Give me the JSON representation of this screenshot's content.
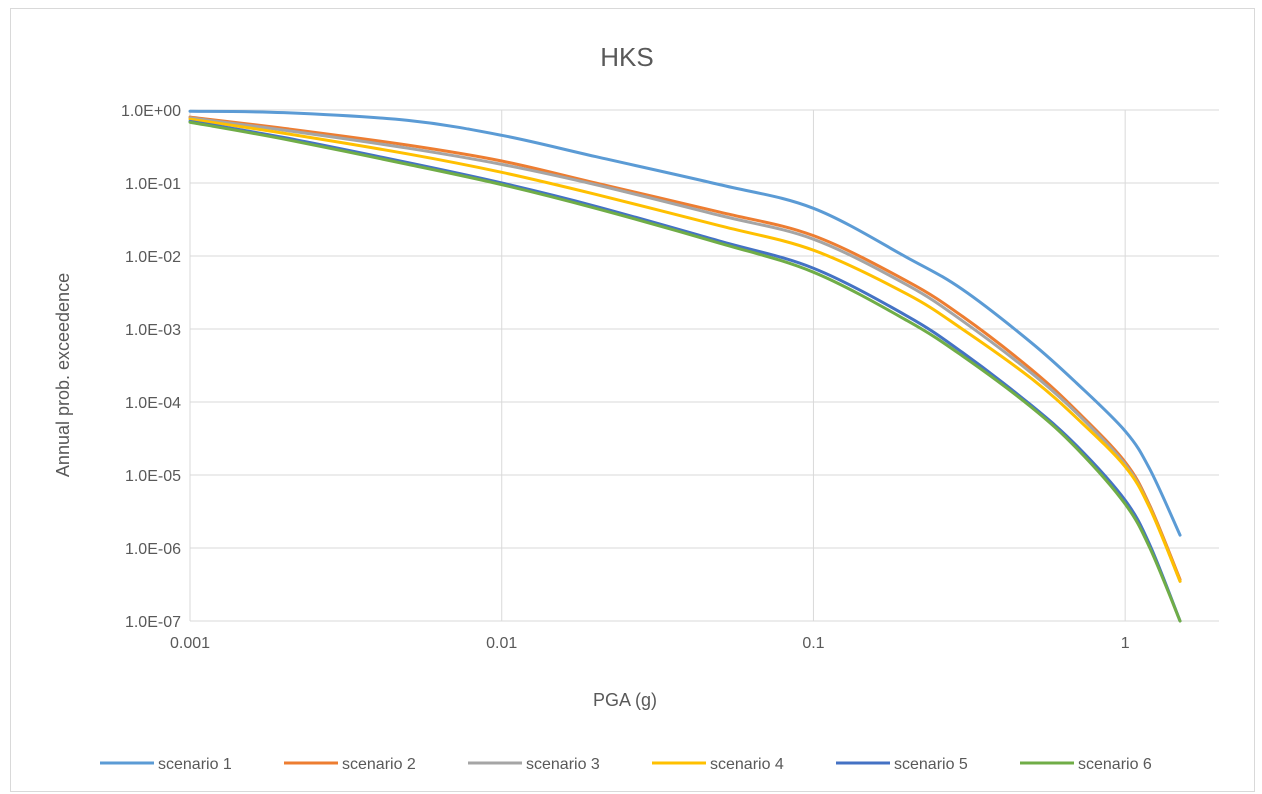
{
  "chart_data": {
    "type": "line",
    "title": "HKS",
    "xlabel": "PGA (g)",
    "ylabel": "Annual prob. exceedence",
    "x_scale": "log",
    "y_scale": "log",
    "xlim": [
      0.001,
      2.0
    ],
    "ylim": [
      1e-07,
      1
    ],
    "x_ticks": [
      0.001,
      0.01,
      0.1,
      1
    ],
    "x_tick_labels": [
      "0.001",
      "0.01",
      "0.1",
      "1"
    ],
    "y_ticks": [
      1,
      0.1,
      0.01,
      0.001,
      0.0001,
      1e-05,
      1e-06,
      1e-07
    ],
    "y_tick_labels": [
      "1.0E+00",
      "1.0E-01",
      "1.0E-02",
      "1.0E-03",
      "1.0E-04",
      "1.0E-05",
      "1.0E-06",
      "1.0E-07"
    ],
    "grid": true,
    "legend_position": "bottom",
    "x": [
      0.001,
      0.002,
      0.005,
      0.01,
      0.02,
      0.05,
      0.1,
      0.2,
      0.3,
      0.5,
      0.7,
      1.0,
      1.2,
      1.5
    ],
    "series": [
      {
        "name": "scenario 1",
        "color": "#5b9bd5",
        "values": [
          0.96,
          0.92,
          0.72,
          0.45,
          0.23,
          0.095,
          0.045,
          0.0095,
          0.0035,
          0.00065,
          0.00018,
          4e-05,
          1.2e-05,
          1.5e-06
        ]
      },
      {
        "name": "scenario 2",
        "color": "#ed7d31",
        "values": [
          0.8,
          0.56,
          0.33,
          0.2,
          0.1,
          0.04,
          0.019,
          0.0045,
          0.0015,
          0.00028,
          7.5e-05,
          1.5e-05,
          3.8e-06,
          3.7e-07
        ]
      },
      {
        "name": "scenario 3",
        "color": "#a5a5a5",
        "values": [
          0.78,
          0.53,
          0.3,
          0.18,
          0.095,
          0.036,
          0.017,
          0.004,
          0.0013,
          0.00025,
          7e-05,
          1.4e-05,
          3.6e-06,
          3.5e-07
        ]
      },
      {
        "name": "scenario 4",
        "color": "#ffc000",
        "values": [
          0.75,
          0.48,
          0.25,
          0.14,
          0.07,
          0.026,
          0.012,
          0.003,
          0.001,
          0.00021,
          6e-05,
          1.3e-05,
          3.5e-06,
          3.5e-07
        ]
      },
      {
        "name": "scenario 5",
        "color": "#4472c4",
        "values": [
          0.7,
          0.42,
          0.19,
          0.1,
          0.048,
          0.016,
          0.0068,
          0.0015,
          0.00048,
          9e-05,
          2.5e-05,
          4.5e-06,
          1.1e-06,
          1e-07
        ]
      },
      {
        "name": "scenario 6",
        "color": "#70ad47",
        "values": [
          0.68,
          0.4,
          0.18,
          0.095,
          0.045,
          0.015,
          0.006,
          0.0013,
          0.00043,
          8.5e-05,
          2.3e-05,
          4e-06,
          1e-06,
          1e-07
        ]
      }
    ]
  }
}
